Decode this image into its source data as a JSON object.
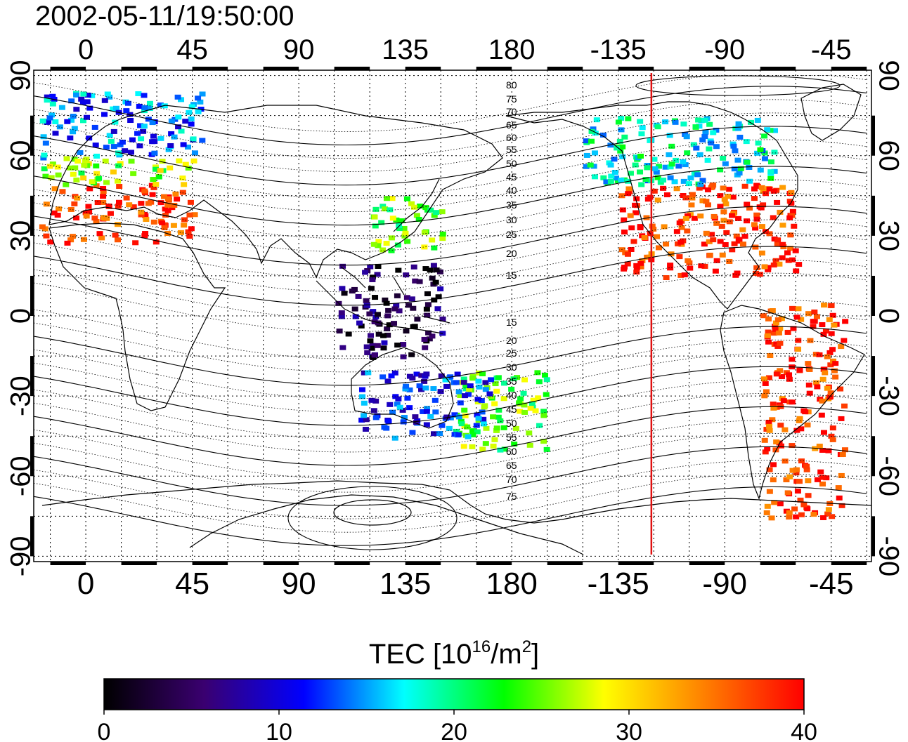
{
  "title": "2002-05-11/19:50:00",
  "colorbar": {
    "label_main": "TEC  [10",
    "label_sup1": "16",
    "label_mid": "/m",
    "label_sup2": "2",
    "label_end": "]",
    "ticks": [
      "0",
      "10",
      "20",
      "30",
      "40"
    ],
    "min": 0,
    "max": 40,
    "stops": [
      "#000000",
      "#3a0070",
      "#0000ff",
      "#00ffff",
      "#00ff00",
      "#ffff00",
      "#ff8000",
      "#ff0000"
    ]
  },
  "map": {
    "lon_ticks_top": [
      "0",
      "45",
      "90",
      "135",
      "180",
      "-135",
      "-90",
      "-45"
    ],
    "lon_ticks_bottom": [
      "0",
      "45",
      "90",
      "135",
      "180",
      "-135",
      "-90",
      "-45"
    ],
    "lat_ticks_left": [
      "90",
      "60",
      "30",
      "0",
      "-30",
      "-60",
      "-90"
    ],
    "lat_ticks_right": [
      "90",
      "60",
      "30",
      "0",
      "-30",
      "-60",
      "-90"
    ],
    "lon_range": [
      -22,
      332
    ],
    "lat_range": [
      -92,
      92
    ],
    "terminator_lon": -121,
    "terminator_color": "#e01010",
    "contour_labels_north": [
      "80",
      "75",
      "70",
      "65",
      "60",
      "55",
      "50",
      "45",
      "40",
      "35",
      "30",
      "25",
      "20",
      "15"
    ],
    "contour_labels_south": [
      "15",
      "20",
      "25",
      "30",
      "35",
      "40",
      "45",
      "50",
      "55",
      "60",
      "65",
      "70",
      "75"
    ]
  },
  "chart_data": {
    "type": "heatmap",
    "quantity": "TEC",
    "units": "10^16/m^2",
    "regions": [
      {
        "lon": [
          -20,
          45
        ],
        "lat": [
          28,
          50
        ],
        "value": 38
      },
      {
        "lon": [
          -20,
          45
        ],
        "lat": [
          50,
          60
        ],
        "value": 26
      },
      {
        "lon": [
          -20,
          50
        ],
        "lat": [
          60,
          85
        ],
        "value": 14
      },
      {
        "lon": [
          120,
          150
        ],
        "lat": [
          25,
          45
        ],
        "value": 24
      },
      {
        "lon": [
          105,
          150
        ],
        "lat": [
          -15,
          20
        ],
        "value": 4
      },
      {
        "lon": [
          -135,
          -60
        ],
        "lat": [
          15,
          50
        ],
        "value": 38
      },
      {
        "lon": [
          -150,
          -70
        ],
        "lat": [
          50,
          75
        ],
        "value": 18
      },
      {
        "lon": [
          -75,
          -40
        ],
        "lat": [
          -75,
          5
        ],
        "value": 38
      },
      {
        "lon": [
          155,
          195
        ],
        "lat": [
          -50,
          -20
        ],
        "value": 24
      },
      {
        "lon": [
          115,
          170
        ],
        "lat": [
          -45,
          -20
        ],
        "value": 12
      }
    ]
  }
}
